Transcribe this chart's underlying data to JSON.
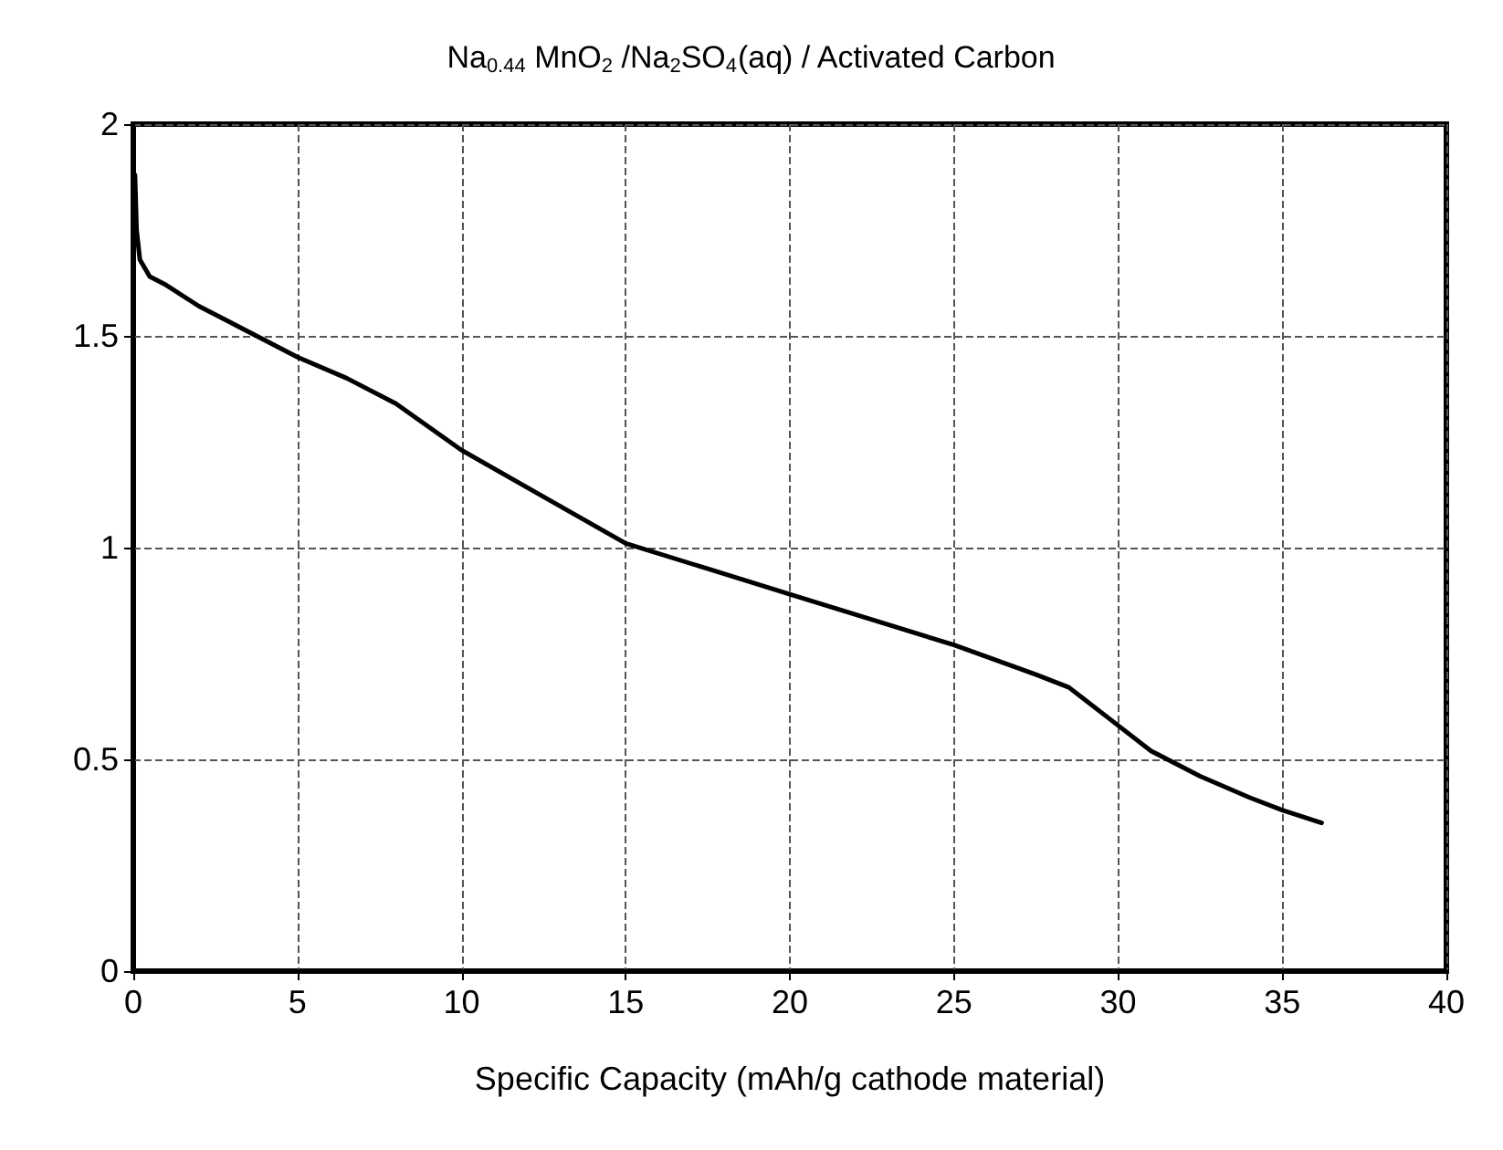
{
  "chart_data": {
    "type": "line",
    "title": "Na$_{0.44}$ MnO$_{2}$ /Na$_{2}$SO$_{4}$(aq) / Activated Carbon",
    "xlabel": "Specific Capacity (mAh/g cathode material)",
    "series": [
      {
        "color": "#000000",
        "x": [
          0.05,
          0.1,
          0.2,
          0.5,
          1,
          2,
          3,
          5,
          6.5,
          8,
          10,
          12.5,
          15,
          17.5,
          20,
          22.5,
          25,
          27.5,
          28.5,
          30,
          31,
          32.5,
          34,
          35,
          36.2
        ],
        "values": [
          1.88,
          1.75,
          1.68,
          1.64,
          1.62,
          1.57,
          1.53,
          1.45,
          1.4,
          1.34,
          1.23,
          1.12,
          1.01,
          0.95,
          0.89,
          0.83,
          0.77,
          0.7,
          0.67,
          0.58,
          0.52,
          0.46,
          0.41,
          0.38,
          0.35
        ]
      }
    ],
    "xlim": [
      0,
      40
    ],
    "xticks": [
      0,
      5,
      10,
      15,
      20,
      25,
      30,
      35,
      40
    ],
    "ylim": [
      0,
      2
    ],
    "yticks": [
      0,
      0.5,
      1,
      1.5,
      2
    ],
    "grid": true,
    "line_style": "solid",
    "marker": "none"
  }
}
